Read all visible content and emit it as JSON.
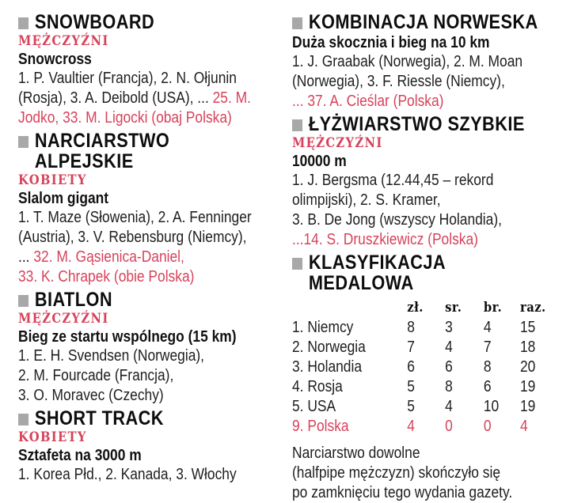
{
  "colors": {
    "accent_red": "#d7425a",
    "text": "#1e1e1e",
    "heading": "#0d0d0d",
    "bullet_gray": "#a8a8a8",
    "background": "#ffffff"
  },
  "left": {
    "sections": [
      {
        "title": "SNOWBOARD",
        "subhead": "MĘŻCZYŹNI",
        "event": "Snowcross",
        "lines": [
          [
            {
              "t": "1. P. Vaultier (Francja), 2. N. Ołjunin",
              "c": "black"
            }
          ],
          [
            {
              "t": "(Rosja), 3. A. Deibold (USA), ... ",
              "c": "black"
            },
            {
              "t": "25. M.",
              "c": "red"
            }
          ],
          [
            {
              "t": "Jodko, 33. M. Ligocki (obaj Polska)",
              "c": "red"
            }
          ]
        ]
      },
      {
        "title": "NARCIARSTWO",
        "title2": "ALPEJSKIE",
        "subhead": "KOBIETY",
        "event": "Slalom gigant",
        "lines": [
          [
            {
              "t": "1. T. Maze (Słowenia), 2. A. Fenninger",
              "c": "black"
            }
          ],
          [
            {
              "t": "(Austria), 3. V. Rebensburg (Niemcy),",
              "c": "black"
            }
          ],
          [
            {
              "t": "... ",
              "c": "black"
            },
            {
              "t": "32. M. Gąsienica-Daniel,",
              "c": "red"
            }
          ],
          [
            {
              "t": "33. K. Chrapek (obie Polska)",
              "c": "red"
            }
          ]
        ]
      },
      {
        "title": "BIATLON",
        "subhead": "MĘŻCZYŹNI",
        "event": "Bieg ze startu wspólnego (15 km)",
        "lines": [
          [
            {
              "t": "1. E. H. Svendsen (Norwegia),",
              "c": "black"
            }
          ],
          [
            {
              "t": "2. M. Fourcade (Francja),",
              "c": "black"
            }
          ],
          [
            {
              "t": "3. O. Moravec (Czechy)",
              "c": "black"
            }
          ]
        ]
      },
      {
        "title": "SHORT TRACK",
        "subhead": "KOBIETY",
        "event": "Sztafeta na 3000 m",
        "lines": [
          [
            {
              "t": "1. Korea Płd., 2. Kanada, 3. Włochy",
              "c": "black"
            }
          ]
        ]
      }
    ]
  },
  "right": {
    "sections": [
      {
        "title": "KOMBINACJA NORWESKA",
        "event": "Duża skocznia i bieg na 10 km",
        "lines": [
          [
            {
              "t": "1. J. Graabak (Norwegia), 2. M. Moan",
              "c": "black"
            }
          ],
          [
            {
              "t": "(Norwegia), 3. F. Riessle (Niemcy),",
              "c": "black"
            }
          ],
          [
            {
              "t": "... 37. A. Cieślar (Polska)",
              "c": "red"
            }
          ]
        ]
      },
      {
        "title": "ŁYŻWIARSTWO SZYBKIE",
        "subhead": "MĘŻCZYŹNI",
        "event": "10000 m",
        "lines": [
          [
            {
              "t": "1. J. Bergsma (12.44,45 – rekord",
              "c": "black"
            }
          ],
          [
            {
              "t": "olimpijski), 2. S. Kramer,",
              "c": "black"
            }
          ],
          [
            {
              "t": "3. B. De Jong (wszyscy Holandia),",
              "c": "black"
            }
          ],
          [
            {
              "t": "...14. S. Druszkiewicz (Polska)",
              "c": "red"
            }
          ]
        ]
      }
    ],
    "medals": {
      "title": "KLASYFIKACJA MEDALOWA",
      "headers": {
        "gold": "zł.",
        "silver": "sr.",
        "bronze": "br.",
        "total": "raz."
      },
      "rows": [
        {
          "name": "1. Niemcy",
          "gold": "8",
          "silver": "3",
          "bronze": "4",
          "total": "15",
          "c": "black"
        },
        {
          "name": "2. Norwegia",
          "gold": "7",
          "silver": "4",
          "bronze": "7",
          "total": "18",
          "c": "black"
        },
        {
          "name": "3. Holandia",
          "gold": "6",
          "silver": "6",
          "bronze": "8",
          "total": "20",
          "c": "black"
        },
        {
          "name": "4. Rosja",
          "gold": "5",
          "silver": "8",
          "bronze": "6",
          "total": "19",
          "c": "black"
        },
        {
          "name": "5. USA",
          "gold": "5",
          "silver": "4",
          "bronze": "10",
          "total": "19",
          "c": "black"
        },
        {
          "name": "9. Polska",
          "gold": "4",
          "silver": "0",
          "bronze": "0",
          "total": "4",
          "c": "red"
        }
      ]
    },
    "note_lines": [
      "Narciarstwo dowolne",
      "(halfpipe mężczyzn) skończyło się",
      "po zamknięciu tego wydania gazety."
    ]
  }
}
